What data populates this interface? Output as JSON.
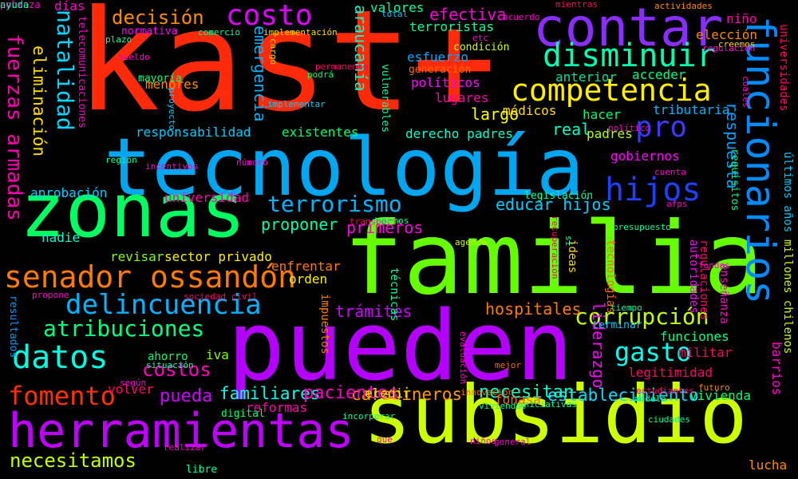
{
  "background_color": "#000000",
  "words": [
    {
      "text": "kast+",
      "color": "#ff2a0a"
    },
    {
      "text": "tecnología",
      "color": "#00a6f0"
    },
    {
      "text": "familia",
      "color": "#66ff00"
    },
    {
      "text": "pueden",
      "color": "#b400ff"
    },
    {
      "text": "zonas",
      "color": "#00ff60"
    },
    {
      "text": "subsidio",
      "color": "#ccff00"
    },
    {
      "text": "herramientas",
      "color": "#c000ff"
    },
    {
      "text": "contar",
      "color": "#8a2dff"
    },
    {
      "text": "funcionarios",
      "color": "#008cff"
    },
    {
      "text": "disminuir",
      "color": "#00ffae"
    },
    {
      "text": "competencia",
      "color": "#ffee00"
    },
    {
      "text": "senador ossandón",
      "color": "#ff7a00"
    },
    {
      "text": "costo",
      "color": "#e000ff"
    },
    {
      "text": "delincuencia",
      "color": "#00b4ff"
    },
    {
      "text": "terrorismo",
      "color": "#00b4ff"
    },
    {
      "text": "hijos",
      "color": "#2040ff"
    },
    {
      "text": "pro",
      "color": "#3a3aff"
    },
    {
      "text": "datos",
      "color": "#00ffe0"
    },
    {
      "text": "fomento",
      "color": "#ff3000"
    },
    {
      "text": "atribuciones",
      "color": "#00ff80"
    },
    {
      "text": "corrupción",
      "color": "#c0ff00"
    },
    {
      "text": "gasto",
      "color": "#00ffee"
    },
    {
      "text": "fuerzas armadas",
      "color": "#ff00b0"
    },
    {
      "text": "natalidad",
      "color": "#00d8ff"
    },
    {
      "text": "eliminación",
      "color": "#ffdd00"
    },
    {
      "text": "decisión",
      "color": "#ff8c00"
    },
    {
      "text": "necesitamos",
      "color": "#c0ff00"
    },
    {
      "text": "familiares",
      "color": "#00ffee"
    },
    {
      "text": "carabineros",
      "color": "#ff9900"
    },
    {
      "text": "establecimiento",
      "color": "#00e0ff"
    },
    {
      "text": "costos",
      "color": "#ff00c0"
    },
    {
      "text": "pueda",
      "color": "#cc00ff"
    },
    {
      "text": "pacientes",
      "color": "#ff00c8"
    },
    {
      "text": "necesitan",
      "color": "#00ffcc"
    },
    {
      "text": "hospitales",
      "color": "#ff7a00"
    },
    {
      "text": "trámites",
      "color": "#cc00ff"
    },
    {
      "text": "primeros",
      "color": "#ff00e0"
    },
    {
      "text": "educar hijos",
      "color": "#00ccff"
    },
    {
      "text": "proponer",
      "color": "#00ffaa"
    },
    {
      "text": "efectiva",
      "color": "#ff00e0"
    },
    {
      "text": "terroristas",
      "color": "#00ff9a"
    },
    {
      "text": "esfuerzo",
      "color": "#00a8ff"
    },
    {
      "text": "políticos",
      "color": "#ff00ff"
    },
    {
      "text": "lugares",
      "color": "#ff00aa"
    },
    {
      "text": "médicos",
      "color": "#ffdd00"
    },
    {
      "text": "largo",
      "color": "#ffff00"
    },
    {
      "text": "real",
      "color": "#00ffcc"
    },
    {
      "text": "padres",
      "color": "#b4ff00"
    },
    {
      "text": "derecho padres",
      "color": "#00ffcc"
    },
    {
      "text": "anterior",
      "color": "#00e0a0"
    },
    {
      "text": "acceder",
      "color": "#00ff7a"
    },
    {
      "text": "hacer",
      "color": "#00ff66"
    },
    {
      "text": "tributaria",
      "color": "#00b4ff"
    },
    {
      "text": "gobiernos",
      "color": "#ff00ff"
    },
    {
      "text": "respuesta",
      "color": "#00a0ff"
    },
    {
      "text": "araucanía",
      "color": "#00ffcc"
    },
    {
      "text": "emergencia",
      "color": "#00b4ff"
    },
    {
      "text": "responsabilidad",
      "color": "#00ccff"
    },
    {
      "text": "existentes",
      "color": "#00ff66"
    },
    {
      "text": "menores",
      "color": "#ff8c00"
    },
    {
      "text": "aprobación",
      "color": "#00ccff"
    },
    {
      "text": "universidad",
      "color": "#ff00aa"
    },
    {
      "text": "nadie",
      "color": "#00ffcc"
    },
    {
      "text": "revisar",
      "color": "#80ff00"
    },
    {
      "text": "sector privado",
      "color": "#ffee00"
    },
    {
      "text": "enfrentar",
      "color": "#ff7a00"
    },
    {
      "text": "orden",
      "color": "#ffee00"
    },
    {
      "text": "niño",
      "color": "#ff00aa"
    },
    {
      "text": "elección",
      "color": "#ff8800"
    },
    {
      "text": "valores",
      "color": "#00ff99"
    },
    {
      "text": "condición",
      "color": "#ccff00"
    },
    {
      "text": "generación",
      "color": "#ff6600"
    },
    {
      "text": "días",
      "color": "#ff00cc"
    },
    {
      "text": "normativa",
      "color": "#ff00ff"
    },
    {
      "text": "mayoría",
      "color": "#00ff80"
    },
    {
      "text": "telecomunicaciones",
      "color": "#ff00cc"
    },
    {
      "text": "liderazgo",
      "color": "#ff00ff"
    },
    {
      "text": "legitimidad",
      "color": "#ff0066"
    },
    {
      "text": "funciones",
      "color": "#00ff80"
    },
    {
      "text": "militar",
      "color": "#ff0066"
    },
    {
      "text": "vivienda",
      "color": "#00ff66"
    },
    {
      "text": "elegir",
      "color": "#ffdd00"
    },
    {
      "text": "reformas",
      "color": "#ff00aa"
    },
    {
      "text": "fonasa",
      "color": "#ff6600"
    },
    {
      "text": "lucha",
      "color": "#ff8800"
    },
    {
      "text": "ahorro",
      "color": "#00ff66"
    },
    {
      "text": "iva",
      "color": "#80ff00"
    },
    {
      "text": "volver",
      "color": "#ff0066"
    },
    {
      "text": "digital",
      "color": "#00ff66"
    },
    {
      "text": "barrios",
      "color": "#ff00cc"
    },
    {
      "text": "millones chilenos",
      "color": "#ccff00"
    },
    {
      "text": "últimos años",
      "color": "#00ccff"
    },
    {
      "text": "universidades",
      "color": "#ff0066"
    },
    {
      "text": "regulaciones",
      "color": "#ff0066"
    },
    {
      "text": "enseñanza",
      "color": "#ff00cc"
    },
    {
      "text": "autoridades",
      "color": "#ff00ff"
    },
    {
      "text": "tecnologías",
      "color": "#ff6600"
    },
    {
      "text": "ideas",
      "color": "#ffdd00"
    },
    {
      "text": "técnicas",
      "color": "#00ff99"
    },
    {
      "text": "impuestos",
      "color": "#ff7a00"
    },
    {
      "text": "resultados",
      "color": "#0099ff"
    },
    {
      "text": "vulnerables",
      "color": "#00ff99"
    },
    {
      "text": "legislación",
      "color": "#00ff99"
    },
    {
      "text": "terminar",
      "color": "#00ccff"
    },
    {
      "text": "requisitos",
      "color": "#00ff80"
    },
    {
      "text": "podrá",
      "color": "#00ff66"
    },
    {
      "text": "implementar",
      "color": "#00ccff"
    },
    {
      "text": "recuperación",
      "color": "#ff0066"
    },
    {
      "text": "agenda",
      "color": "#ccff00"
    },
    {
      "text": "mientras",
      "color": "#ff0066"
    },
    {
      "text": "actividades",
      "color": "#ff8800"
    },
    {
      "text": "comercio",
      "color": "#00ff99"
    },
    {
      "text": "implementación",
      "color": "#ffdd00"
    },
    {
      "text": "permanente",
      "color": "#ff0066"
    },
    {
      "text": "sociedad civil",
      "color": "#ff0066"
    },
    {
      "text": "propone",
      "color": "#ff00cc"
    },
    {
      "text": "situación",
      "color": "#00ff99"
    },
    {
      "text": "según",
      "color": "#ff00cc"
    },
    {
      "text": "innovación",
      "color": "#ff6600"
    },
    {
      "text": "viviendas",
      "color": "#00ff99"
    },
    {
      "text": "iniciativas",
      "color": "#00ff99"
    },
    {
      "text": "evaluación",
      "color": "#ff00cc"
    },
    {
      "text": "mejor",
      "color": "#ff6600"
    },
    {
      "text": "futuro",
      "color": "#ff8800"
    },
    {
      "text": "ciudades",
      "color": "#00ff99"
    },
    {
      "text": "modelo",
      "color": "#00ff99"
    },
    {
      "text": "tiempo",
      "color": "#00ff99"
    },
    {
      "text": "estudiantes",
      "color": "#ff0066"
    },
    {
      "text": "incorporar",
      "color": "#00ff99"
    },
    {
      "text": "libre",
      "color": "#00ff99"
    },
    {
      "text": "niños",
      "color": "#ff00cc"
    },
    {
      "text": "general",
      "color": "#ff00cc"
    },
    {
      "text": "transporte",
      "color": "#ff0066"
    },
    {
      "text": "debemos",
      "color": "#00ff99"
    },
    {
      "text": "presupuesto",
      "color": "#00ff99"
    },
    {
      "text": "afps",
      "color": "#ff00cc"
    },
    {
      "text": "fondos",
      "color": "#ff00cc"
    },
    {
      "text": "político",
      "color": "#ff00cc"
    },
    {
      "text": "cuenta",
      "color": "#ff00cc"
    },
    {
      "text": "incentivos",
      "color": "#ff00cc"
    },
    {
      "text": "región",
      "color": "#00ff99"
    },
    {
      "text": "proyecto",
      "color": "#00ccff"
    },
    {
      "text": "cargo",
      "color": "#ffdd00"
    },
    {
      "text": "etc",
      "color": "#ff00cc"
    },
    {
      "text": "plazo",
      "color": "#00ff99"
    },
    {
      "text": "total",
      "color": "#00ccff"
    },
    {
      "text": "creemos",
      "color": "#ffdd00"
    },
    {
      "text": "cuales",
      "color": "#ff00cc"
    },
    {
      "text": "número",
      "color": "#ff00cc"
    },
    {
      "text": "que",
      "color": "#ff00cc"
    },
    {
      "text": "sí",
      "color": "#00ff99"
    },
    {
      "text": "realizar",
      "color": "#ff00cc"
    },
    {
      "text": "regulación",
      "color": "#ff00cc"
    },
    {
      "text": "sueldo",
      "color": "#ff00cc"
    },
    {
      "text": "acuerdo",
      "color": "#ff00cc"
    },
    {
      "text": "pobreza",
      "color": "#ff00cc"
    },
    {
      "text": "ayuda",
      "color": "#00ff99"
    }
  ]
}
